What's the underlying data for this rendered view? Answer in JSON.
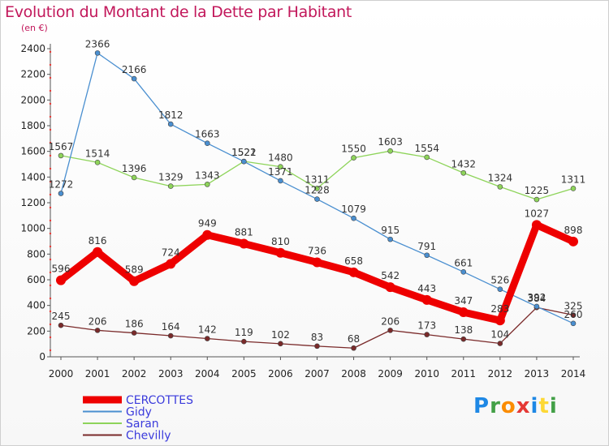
{
  "title": "Evolution du Montant de la Dette par Habitant",
  "subtitle": "(en €)",
  "logo": {
    "text": "Proxiti",
    "letters": [
      {
        "ch": "P",
        "color": "#1e88e5"
      },
      {
        "ch": "r",
        "color": "#43a047"
      },
      {
        "ch": "o",
        "color": "#fb8c00"
      },
      {
        "ch": "x",
        "color": "#e53935"
      },
      {
        "ch": "i",
        "color": "#1e88e5"
      },
      {
        "ch": "t",
        "color": "#fdd835"
      },
      {
        "ch": "i",
        "color": "#43a047"
      }
    ]
  },
  "chart_data": {
    "type": "line",
    "x": [
      2000,
      2001,
      2002,
      2003,
      2004,
      2005,
      2006,
      2007,
      2008,
      2009,
      2010,
      2011,
      2012,
      2013,
      2014
    ],
    "ylim": [
      0,
      2500
    ],
    "yticks": [
      0,
      200,
      400,
      600,
      800,
      1000,
      1200,
      1400,
      1600,
      1800,
      2000,
      2200,
      2400
    ],
    "grid": false,
    "legend_position": "bottom-left",
    "series": [
      {
        "name": "CERCOTTES",
        "color": "#ee0000",
        "bold": true,
        "values": [
          596,
          816,
          589,
          724,
          949,
          881,
          810,
          736,
          658,
          542,
          443,
          347,
          283,
          1027,
          898
        ]
      },
      {
        "name": "Gidy",
        "color": "#4a8fd0",
        "bold": false,
        "values": [
          1272,
          2366,
          2166,
          1812,
          1663,
          1521,
          1371,
          1228,
          1079,
          915,
          791,
          661,
          526,
          392,
          260
        ]
      },
      {
        "name": "Saran",
        "color": "#8ed45a",
        "bold": false,
        "values": [
          1567,
          1514,
          1396,
          1329,
          1343,
          1522,
          1480,
          1311,
          1550,
          1603,
          1554,
          1432,
          1324,
          1225,
          1311
        ]
      },
      {
        "name": "Chevilly",
        "color": "#7a2a2a",
        "bold": false,
        "values": [
          245,
          206,
          186,
          164,
          142,
          119,
          102,
          83,
          68,
          206,
          173,
          138,
          104,
          384,
          325
        ]
      }
    ]
  }
}
